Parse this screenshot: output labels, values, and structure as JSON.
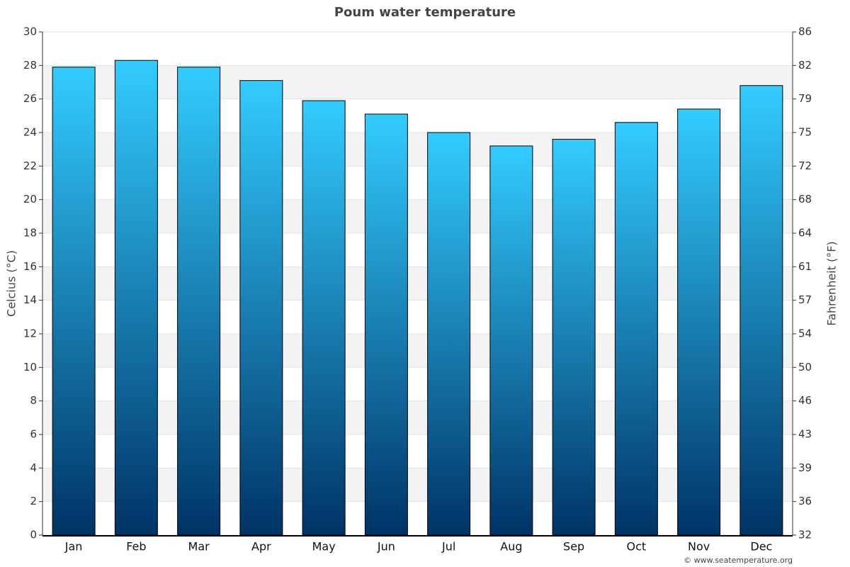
{
  "chart_data": {
    "type": "bar",
    "title": "Poum water temperature",
    "y_label": "Celcius (°C)",
    "y2_label": "Fahrenheit (°F)",
    "credit": "© www.seatemperature.org",
    "categories": [
      "Jan",
      "Feb",
      "Mar",
      "Apr",
      "May",
      "Jun",
      "Jul",
      "Aug",
      "Sep",
      "Oct",
      "Nov",
      "Dec"
    ],
    "values": [
      27.9,
      28.3,
      27.9,
      27.1,
      25.9,
      25.1,
      24.0,
      23.2,
      23.6,
      24.6,
      25.4,
      26.8
    ],
    "color": [
      "#33ccff",
      "#003366"
    ],
    "ylim": [
      0,
      30
    ],
    "yticks": [
      0,
      2,
      4,
      6,
      8,
      10,
      12,
      14,
      16,
      18,
      20,
      22,
      24,
      26,
      28,
      30
    ],
    "y2lim": [
      32,
      86
    ],
    "y2ticks": [
      32,
      {
        "value": 35.6,
        "label": "36"
      },
      {
        "value": 39.2,
        "label": "39"
      },
      {
        "value": 42.8,
        "label": "43"
      },
      {
        "value": 46.4,
        "label": "46"
      },
      50,
      {
        "value": 53.6,
        "label": "54"
      },
      {
        "value": 57.2,
        "label": "57"
      },
      {
        "value": 60.8,
        "label": "61"
      },
      {
        "value": 64.4,
        "label": "64"
      },
      68,
      {
        "value": 71.6,
        "label": "72"
      },
      {
        "value": 75.2,
        "label": "75"
      },
      {
        "value": 78.8,
        "label": "79"
      },
      {
        "value": 82.4,
        "label": "82"
      },
      86
    ],
    "grid": true
  }
}
